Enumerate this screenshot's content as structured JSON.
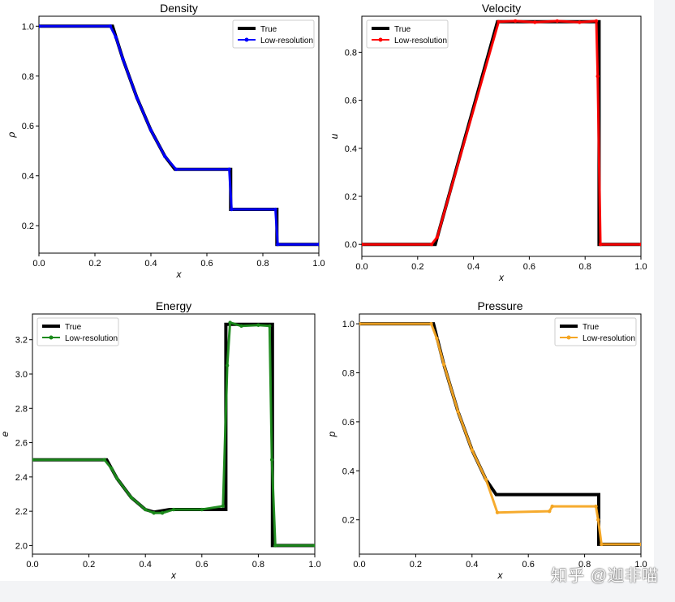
{
  "watermark": "知乎 @迦非喵",
  "chart_data": [
    {
      "type": "line",
      "title": "Density",
      "xlabel": "x",
      "ylabel": "ρ",
      "xlim": [
        0,
        1
      ],
      "ylim": [
        0.09,
        1.04
      ],
      "xticks": [
        "0.0",
        "0.2",
        "0.4",
        "0.6",
        "0.8",
        "1.0"
      ],
      "yticks": [
        0.2,
        0.4,
        0.6,
        0.8,
        1.0
      ],
      "ytick_labels": [
        "0.2",
        "0.4",
        "0.6",
        "0.8",
        "1.0"
      ],
      "legend": "top-right",
      "series": [
        {
          "name": "True",
          "color": "#000000",
          "style": "thick",
          "x": [
            0,
            0.263,
            0.3,
            0.35,
            0.4,
            0.45,
            0.486,
            0.685,
            0.685,
            0.85,
            0.85,
            1.0
          ],
          "y": [
            1.0,
            1.0,
            0.868,
            0.713,
            0.583,
            0.478,
            0.426,
            0.426,
            0.2656,
            0.2656,
            0.125,
            0.125
          ]
        },
        {
          "name": "Low-resolution",
          "color": "#0000ff",
          "style": "marker",
          "x": [
            0,
            0.255,
            0.275,
            0.3,
            0.35,
            0.4,
            0.45,
            0.49,
            0.68,
            0.688,
            0.845,
            0.853,
            1.0
          ],
          "y": [
            1.0,
            1.0,
            0.955,
            0.868,
            0.713,
            0.583,
            0.478,
            0.426,
            0.426,
            0.2656,
            0.2656,
            0.125,
            0.125
          ]
        }
      ]
    },
    {
      "type": "line",
      "title": "Velocity",
      "xlabel": "x",
      "ylabel": "u",
      "xlim": [
        0,
        1
      ],
      "ylim": [
        -0.05,
        0.95
      ],
      "xticks": [
        "0.0",
        "0.2",
        "0.4",
        "0.6",
        "0.8",
        "1.0"
      ],
      "yticks": [
        0.0,
        0.2,
        0.4,
        0.6,
        0.8
      ],
      "ytick_labels": [
        "0.0",
        "0.2",
        "0.4",
        "0.6",
        "0.8"
      ],
      "legend": "top-left",
      "series": [
        {
          "name": "True",
          "color": "#000000",
          "style": "thick",
          "x": [
            0,
            0.263,
            0.486,
            0.85,
            0.85,
            1.0
          ],
          "y": [
            0.0,
            0.0,
            0.927,
            0.927,
            0.0,
            0.0
          ]
        },
        {
          "name": "Low-resolution",
          "color": "#ff0000",
          "style": "marker",
          "x": [
            0,
            0.25,
            0.27,
            0.49,
            0.55,
            0.62,
            0.7,
            0.78,
            0.84,
            0.845,
            0.855,
            1.0
          ],
          "y": [
            0.0,
            0.0,
            0.03,
            0.927,
            0.93,
            0.925,
            0.93,
            0.925,
            0.93,
            0.7,
            0.0,
            0.0
          ]
        }
      ]
    },
    {
      "type": "line",
      "title": "Energy",
      "xlabel": "x",
      "ylabel": "e",
      "xlim": [
        0,
        1
      ],
      "ylim": [
        1.95,
        3.35
      ],
      "xticks": [
        "0.0",
        "0.2",
        "0.4",
        "0.6",
        "0.8",
        "1.0"
      ],
      "yticks": [
        2.0,
        2.2,
        2.4,
        2.6,
        2.8,
        3.0,
        3.2
      ],
      "ytick_labels": [
        "2.0",
        "2.2",
        "2.4",
        "2.6",
        "2.8",
        "3.0",
        "3.2"
      ],
      "legend": "top-left",
      "series": [
        {
          "name": "True",
          "color": "#000000",
          "style": "thick",
          "x": [
            0,
            0.263,
            0.3,
            0.35,
            0.4,
            0.43,
            0.45,
            0.486,
            0.685,
            0.685,
            0.85,
            0.85,
            1.0
          ],
          "y": [
            2.5,
            2.5,
            2.39,
            2.28,
            2.21,
            2.195,
            2.2,
            2.21,
            2.21,
            3.29,
            3.29,
            2.0,
            2.0
          ]
        },
        {
          "name": "Low-resolution",
          "color": "#1a8a1a",
          "style": "marker",
          "x": [
            0,
            0.255,
            0.28,
            0.3,
            0.35,
            0.4,
            0.43,
            0.46,
            0.5,
            0.6,
            0.675,
            0.69,
            0.7,
            0.74,
            0.8,
            0.84,
            0.848,
            0.86,
            1.0
          ],
          "y": [
            2.5,
            2.5,
            2.45,
            2.39,
            2.28,
            2.21,
            2.19,
            2.19,
            2.21,
            2.21,
            2.23,
            3.05,
            3.3,
            3.28,
            3.285,
            3.28,
            2.5,
            2.0,
            2.0
          ]
        }
      ]
    },
    {
      "type": "line",
      "title": "Pressure",
      "xlabel": "x",
      "ylabel": "p",
      "xlim": [
        0,
        1
      ],
      "ylim": [
        0.06,
        1.04
      ],
      "xticks": [
        "0.0",
        "0.2",
        "0.4",
        "0.6",
        "0.8",
        "1.0"
      ],
      "yticks": [
        0.2,
        0.4,
        0.6,
        0.8,
        1.0
      ],
      "ytick_labels": [
        "0.2",
        "0.4",
        "0.6",
        "0.8",
        "1.0"
      ],
      "legend": "top-right",
      "series": [
        {
          "name": "True",
          "color": "#000000",
          "style": "thick",
          "x": [
            0,
            0.263,
            0.3,
            0.35,
            0.4,
            0.45,
            0.486,
            0.685,
            0.685,
            0.85,
            0.85,
            1.0
          ],
          "y": [
            1.0,
            1.0,
            0.834,
            0.642,
            0.485,
            0.364,
            0.303,
            0.303,
            0.303,
            0.303,
            0.1,
            0.1
          ]
        },
        {
          "name": "Low-resolution",
          "color": "#f5a623",
          "style": "marker",
          "x": [
            0,
            0.255,
            0.275,
            0.3,
            0.35,
            0.4,
            0.45,
            0.49,
            0.675,
            0.685,
            0.84,
            0.848,
            0.86,
            1.0
          ],
          "y": [
            1.0,
            1.0,
            0.94,
            0.834,
            0.642,
            0.485,
            0.364,
            0.23,
            0.235,
            0.255,
            0.255,
            0.2,
            0.1,
            0.1
          ]
        }
      ]
    }
  ]
}
